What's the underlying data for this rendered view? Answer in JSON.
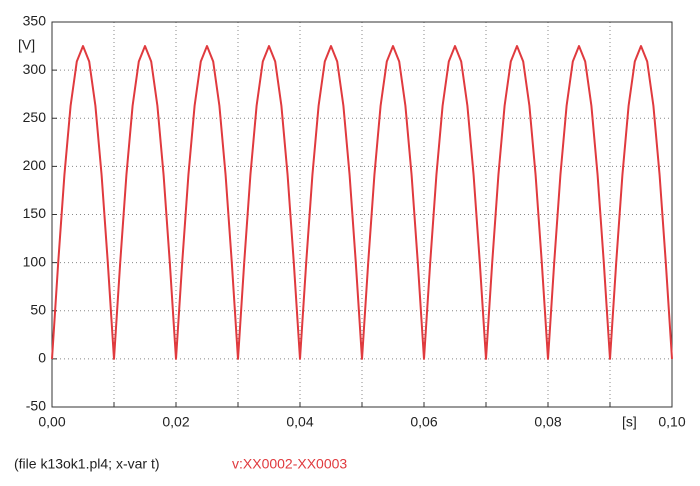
{
  "chart_data": {
    "type": "line",
    "y_unit": "[V]",
    "x_unit": "[s]",
    "caption": "(file k13ok1.pl4; x-var t)",
    "x": [
      0,
      0.001,
      0.002,
      0.003,
      0.004,
      0.005,
      0.006,
      0.007,
      0.008,
      0.009,
      0.01,
      0.011,
      0.012,
      0.013,
      0.014,
      0.015,
      0.016,
      0.017,
      0.018,
      0.019,
      0.02,
      0.021,
      0.022,
      0.023,
      0.024,
      0.025,
      0.026,
      0.027,
      0.028,
      0.029,
      0.03,
      0.031,
      0.032,
      0.033,
      0.034,
      0.035,
      0.036,
      0.037,
      0.038,
      0.039,
      0.04,
      0.041,
      0.042,
      0.043,
      0.044,
      0.045,
      0.046,
      0.047,
      0.048,
      0.049,
      0.05,
      0.051,
      0.052,
      0.053,
      0.054,
      0.055,
      0.056,
      0.057,
      0.058,
      0.059,
      0.06,
      0.061,
      0.062,
      0.063,
      0.064,
      0.065,
      0.066,
      0.067,
      0.068,
      0.069,
      0.07,
      0.071,
      0.072,
      0.073,
      0.074,
      0.075,
      0.076,
      0.077,
      0.078,
      0.079,
      0.08,
      0.081,
      0.082,
      0.083,
      0.084,
      0.085,
      0.086,
      0.087,
      0.088,
      0.089,
      0.09,
      0.091,
      0.092,
      0.093,
      0.094,
      0.095,
      0.096,
      0.097,
      0.098,
      0.099,
      0.1
    ],
    "series": [
      {
        "name": "v:XX0002-XX0003",
        "color": "#e03a3e",
        "values": [
          0,
          100,
          191,
          263,
          309,
          325,
          309,
          263,
          191,
          100,
          0,
          100,
          191,
          263,
          309,
          325,
          309,
          263,
          191,
          100,
          0,
          100,
          191,
          263,
          309,
          325,
          309,
          263,
          191,
          100,
          0,
          100,
          191,
          263,
          309,
          325,
          309,
          263,
          191,
          100,
          0,
          100,
          191,
          263,
          309,
          325,
          309,
          263,
          191,
          100,
          0,
          100,
          191,
          263,
          309,
          325,
          309,
          263,
          191,
          100,
          0,
          100,
          191,
          263,
          309,
          325,
          309,
          263,
          191,
          100,
          0,
          100,
          191,
          263,
          309,
          325,
          309,
          263,
          191,
          100,
          0,
          100,
          191,
          263,
          309,
          325,
          309,
          263,
          191,
          100,
          0,
          100,
          191,
          263,
          309,
          325,
          309,
          263,
          191,
          100,
          0
        ]
      }
    ],
    "xlim": [
      0,
      0.1
    ],
    "xticks": [
      {
        "value": 0,
        "label": "0,00"
      },
      {
        "value": 0.01,
        "label": null
      },
      {
        "value": 0.02,
        "label": "0,02"
      },
      {
        "value": 0.03,
        "label": null
      },
      {
        "value": 0.04,
        "label": "0,04"
      },
      {
        "value": 0.05,
        "label": null
      },
      {
        "value": 0.06,
        "label": "0,06"
      },
      {
        "value": 0.07,
        "label": null
      },
      {
        "value": 0.08,
        "label": "0,08"
      },
      {
        "value": 0.09,
        "label": null
      },
      {
        "value": 0.1,
        "label": "0,10"
      }
    ],
    "ylim": [
      -50,
      350
    ],
    "yticks": [
      -50,
      0,
      50,
      100,
      150,
      200,
      250,
      300,
      350
    ],
    "grid": true
  }
}
